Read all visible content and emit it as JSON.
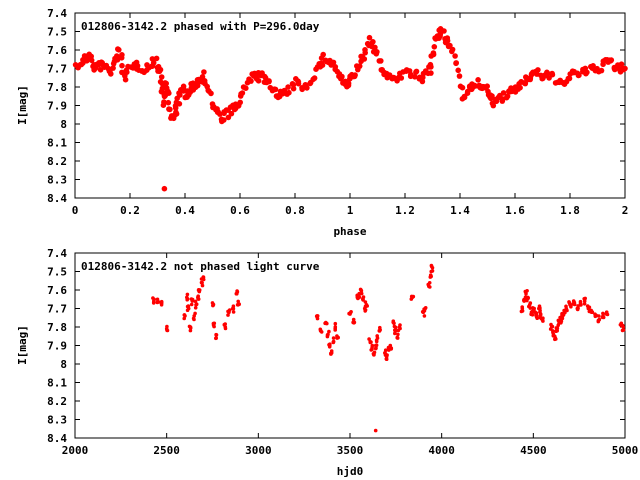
{
  "chart_data": [
    {
      "type": "scatter",
      "title": "012806-3142.2 phased with P=296.0day",
      "xlabel": "phase",
      "ylabel": "I[mag]",
      "xlim": [
        0,
        2
      ],
      "ylim": [
        7.4,
        8.4
      ],
      "y_inverted": true,
      "xticks": [
        "0",
        "0.2",
        "0.4",
        "0.6",
        "0.8",
        "1",
        "1.2",
        "1.4",
        "1.6",
        "1.8",
        "2"
      ],
      "yticks": [
        "7.4",
        "7.5",
        "7.6",
        "7.7",
        "7.8",
        "7.9",
        "8",
        "8.1",
        "8.2",
        "8.3",
        "8.4"
      ],
      "marker_color": "#ff0000",
      "anchor_points": [
        [
          0.0,
          7.7
        ],
        [
          0.03,
          7.66
        ],
        [
          0.05,
          7.62
        ],
        [
          0.07,
          7.7
        ],
        [
          0.1,
          7.68
        ],
        [
          0.13,
          7.72
        ],
        [
          0.16,
          7.6
        ],
        [
          0.18,
          7.74
        ],
        [
          0.22,
          7.68
        ],
        [
          0.26,
          7.7
        ],
        [
          0.29,
          7.66
        ],
        [
          0.31,
          7.72
        ],
        [
          0.32,
          7.88
        ],
        [
          0.33,
          7.78
        ],
        [
          0.35,
          7.96
        ],
        [
          0.37,
          7.92
        ],
        [
          0.39,
          7.8
        ],
        [
          0.41,
          7.85
        ],
        [
          0.43,
          7.8
        ],
        [
          0.45,
          7.76
        ],
        [
          0.47,
          7.74
        ],
        [
          0.5,
          7.9
        ],
        [
          0.53,
          7.97
        ],
        [
          0.56,
          7.94
        ],
        [
          0.59,
          7.9
        ],
        [
          0.62,
          7.8
        ],
        [
          0.65,
          7.73
        ],
        [
          0.68,
          7.75
        ],
        [
          0.71,
          7.79
        ],
        [
          0.74,
          7.84
        ],
        [
          0.77,
          7.84
        ],
        [
          0.8,
          7.78
        ],
        [
          0.84,
          7.8
        ],
        [
          0.88,
          7.7
        ],
        [
          0.91,
          7.64
        ],
        [
          0.94,
          7.68
        ],
        [
          0.97,
          7.76
        ],
        [
          0.99,
          7.8
        ],
        [
          1.01,
          7.74
        ],
        [
          1.04,
          7.66
        ],
        [
          1.07,
          7.55
        ],
        [
          1.09,
          7.6
        ],
        [
          1.12,
          7.72
        ],
        [
          1.15,
          7.75
        ],
        [
          1.18,
          7.74
        ],
        [
          1.22,
          7.72
        ],
        [
          1.26,
          7.76
        ],
        [
          1.29,
          7.7
        ],
        [
          1.31,
          7.56
        ],
        [
          1.33,
          7.5
        ],
        [
          1.35,
          7.55
        ],
        [
          1.38,
          7.62
        ],
        [
          1.41,
          7.84
        ],
        [
          1.44,
          7.8
        ],
        [
          1.47,
          7.78
        ],
        [
          1.5,
          7.82
        ],
        [
          1.52,
          7.88
        ],
        [
          1.55,
          7.86
        ],
        [
          1.58,
          7.84
        ],
        [
          1.61,
          7.8
        ],
        [
          1.64,
          7.76
        ],
        [
          1.67,
          7.72
        ],
        [
          1.7,
          7.74
        ],
        [
          1.74,
          7.75
        ],
        [
          1.78,
          7.78
        ],
        [
          1.82,
          7.72
        ],
        [
          1.86,
          7.72
        ],
        [
          1.9,
          7.7
        ],
        [
          1.94,
          7.66
        ],
        [
          1.97,
          7.7
        ],
        [
          2.0,
          7.7
        ]
      ],
      "outliers": [
        [
          0.325,
          8.35
        ]
      ],
      "source_series": "not phased light curve",
      "jitter": 0.025
    },
    {
      "type": "scatter",
      "title": "012806-3142.2 not phased light curve",
      "xlabel": "hjd0",
      "ylabel": "I[mag]",
      "xlim": [
        2000,
        5000
      ],
      "ylim": [
        7.4,
        8.4
      ],
      "y_inverted": true,
      "xticks": [
        "2000",
        "2500",
        "3000",
        "3500",
        "4000",
        "4500",
        "5000"
      ],
      "yticks": [
        "7.4",
        "7.5",
        "7.6",
        "7.7",
        "7.8",
        "7.9",
        "8",
        "8.1",
        "8.2",
        "8.3",
        "8.4"
      ],
      "marker_color": "#ff0000",
      "segments": [
        {
          "x": [
            2430,
            2450,
            2470
          ],
          "y": [
            7.66,
            7.65,
            7.67
          ]
        },
        {
          "x": [
            2500
          ],
          "y": [
            7.81
          ]
        },
        {
          "x": [
            2600,
            2610,
            2620,
            2630,
            2640,
            2650,
            2660
          ],
          "y": [
            7.74,
            7.64,
            7.7,
            7.8,
            7.66,
            7.74,
            7.68
          ]
        },
        {
          "x": [
            2670,
            2680,
            2690,
            2700
          ],
          "y": [
            7.64,
            7.6,
            7.56,
            7.53
          ]
        },
        {
          "x": [
            2750,
            2760,
            2770
          ],
          "y": [
            7.67,
            7.78,
            7.86
          ]
        },
        {
          "x": [
            2820,
            2840,
            2860,
            2880,
            2890
          ],
          "y": [
            7.8,
            7.72,
            7.7,
            7.62,
            7.68
          ]
        },
        {
          "x": [
            3320,
            3340
          ],
          "y": [
            7.74,
            7.82
          ]
        },
        {
          "x": [
            3370,
            3380,
            3390,
            3400,
            3410,
            3420,
            3430
          ],
          "y": [
            7.78,
            7.84,
            7.9,
            7.93,
            7.88,
            7.8,
            7.86
          ]
        },
        {
          "x": [
            3500,
            3520
          ],
          "y": [
            7.73,
            7.76
          ]
        },
        {
          "x": [
            3540,
            3550,
            3560,
            3570,
            3580,
            3590
          ],
          "y": [
            7.64,
            7.62,
            7.6,
            7.65,
            7.7,
            7.68
          ]
        },
        {
          "x": [
            3610,
            3620,
            3630,
            3640,
            3650,
            3660
          ],
          "y": [
            7.88,
            7.92,
            7.95,
            7.9,
            7.86,
            7.82
          ]
        },
        {
          "x": [
            3690,
            3700,
            3710,
            3720
          ],
          "y": [
            7.94,
            7.96,
            7.92,
            7.9
          ]
        },
        {
          "x": [
            3740,
            3750,
            3760,
            3770
          ],
          "y": [
            7.78,
            7.82,
            7.86,
            7.8
          ]
        },
        {
          "x": [
            3840
          ],
          "y": [
            7.64
          ]
        },
        {
          "x": [
            3900,
            3910
          ],
          "y": [
            7.72,
            7.7
          ]
        },
        {
          "x": [
            3930,
            3940,
            3950
          ],
          "y": [
            7.58,
            7.52,
            7.48
          ]
        },
        {
          "x": [
            4440,
            4450,
            4460,
            4470,
            4480,
            4490,
            4500,
            4510,
            4520,
            4530,
            4540,
            4550
          ],
          "y": [
            7.7,
            7.66,
            7.62,
            7.64,
            7.68,
            7.72,
            7.7,
            7.72,
            7.74,
            7.7,
            7.73,
            7.76
          ]
        },
        {
          "x": [
            4600,
            4610,
            4620,
            4630,
            4640,
            4650,
            4660,
            4670
          ],
          "y": [
            7.8,
            7.84,
            7.86,
            7.82,
            7.78,
            7.76,
            7.74,
            7.72
          ]
        },
        {
          "x": [
            4680,
            4700,
            4720,
            4740,
            4760,
            4780,
            4800
          ],
          "y": [
            7.7,
            7.68,
            7.66,
            7.7,
            7.68,
            7.66,
            7.7
          ]
        },
        {
          "x": [
            4820,
            4840,
            4860,
            4880,
            4900
          ],
          "y": [
            7.72,
            7.74,
            7.76,
            7.74,
            7.72
          ]
        },
        {
          "x": [
            4980,
            4990
          ],
          "y": [
            7.78,
            7.8
          ]
        }
      ],
      "outliers": [
        [
          3640,
          8.36
        ]
      ]
    }
  ]
}
